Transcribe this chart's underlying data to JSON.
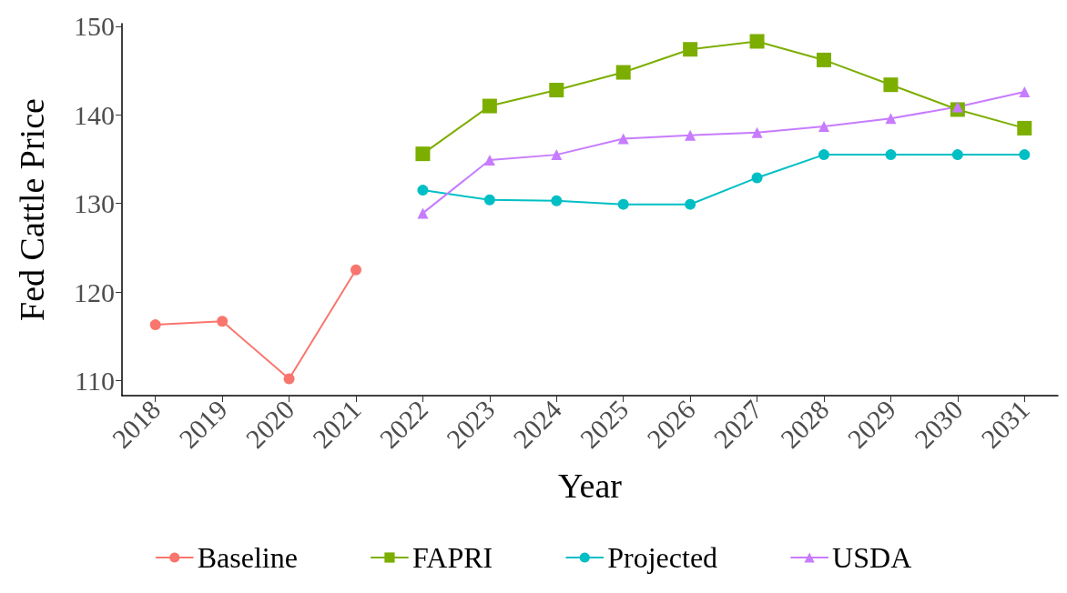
{
  "chart_data": {
    "type": "line",
    "xlabel": "Year",
    "ylabel": "Fed Cattle Price",
    "categories": [
      "2018",
      "2019",
      "2020",
      "2021",
      "2022",
      "2023",
      "2024",
      "2025",
      "2026",
      "2027",
      "2028",
      "2029",
      "2030",
      "2031"
    ],
    "series": [
      {
        "name": "Baseline",
        "color": "#f8766d",
        "marker": "circle",
        "values": [
          116.3,
          116.7,
          110.2,
          122.5,
          null,
          null,
          null,
          null,
          null,
          null,
          null,
          null,
          null,
          null
        ]
      },
      {
        "name": "FAPRI",
        "color": "#7cae00",
        "marker": "square",
        "values": [
          null,
          null,
          null,
          null,
          135.6,
          141.0,
          142.8,
          144.8,
          147.4,
          148.3,
          146.2,
          143.4,
          140.6,
          138.5
        ]
      },
      {
        "name": "Projected",
        "color": "#00bfc4",
        "marker": "circle",
        "values": [
          null,
          null,
          null,
          null,
          131.5,
          130.4,
          130.3,
          129.9,
          129.9,
          132.9,
          135.5,
          135.5,
          135.5,
          135.5
        ]
      },
      {
        "name": "USDA",
        "color": "#c77cff",
        "marker": "triangle",
        "values": [
          null,
          null,
          null,
          null,
          128.9,
          134.9,
          135.5,
          137.3,
          137.7,
          138.0,
          138.7,
          139.6,
          140.9,
          142.6
        ]
      }
    ],
    "ylim": [
      108.3,
      150.3
    ],
    "yticks": [
      110,
      120,
      130,
      140,
      150
    ],
    "grid": false,
    "legend": "bottom",
    "line_style": "solid"
  }
}
